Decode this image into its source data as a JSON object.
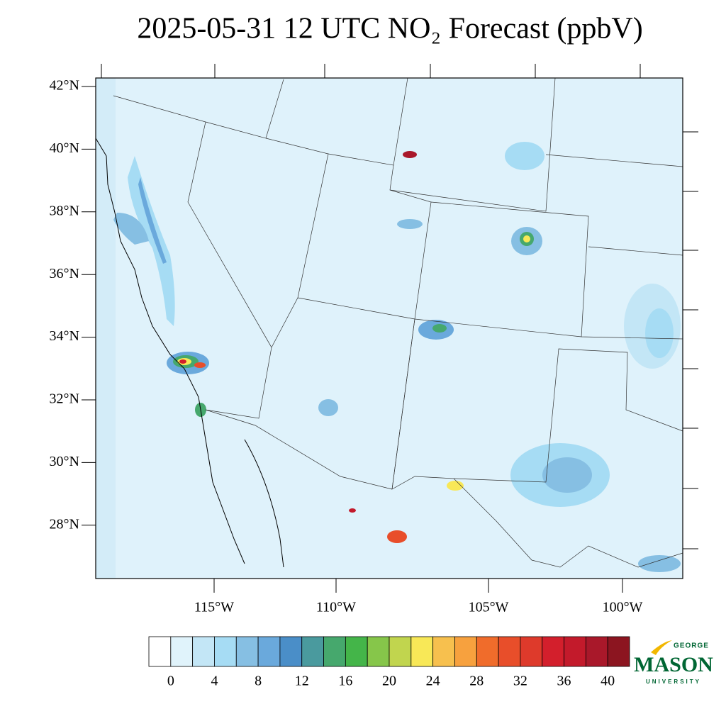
{
  "header": {
    "title": "2025-05-31 12 UTC NO₂ Forecast (ppbV)"
  },
  "map": {
    "lat_labels": [
      "42°N",
      "40°N",
      "38°N",
      "36°N",
      "34°N",
      "32°N",
      "30°N",
      "28°N"
    ],
    "lon_labels": [
      "115°W",
      "110°W",
      "105°W",
      "100°W"
    ]
  },
  "colorbar": {
    "ticks": [
      0,
      4,
      8,
      12,
      16,
      20,
      24,
      28,
      32,
      36,
      40
    ],
    "colors": [
      "#ffffff",
      "#e0f3fb",
      "#c3e6f6",
      "#a6dcf4",
      "#86bfe3",
      "#6aa9dc",
      "#4a8ec8",
      "#4a9a9e",
      "#46a86d",
      "#44b549",
      "#86c64a",
      "#c1d54e",
      "#f8e857",
      "#f7c04e",
      "#f7a13e",
      "#f06c2b",
      "#e84e2a",
      "#de3a2b",
      "#d31f2c",
      "#c31a2b",
      "#a9182a",
      "#8c1520"
    ]
  },
  "logo": {
    "top": "GEORGE",
    "main": "MASON",
    "bottom": "UNIVERSITY"
  }
}
